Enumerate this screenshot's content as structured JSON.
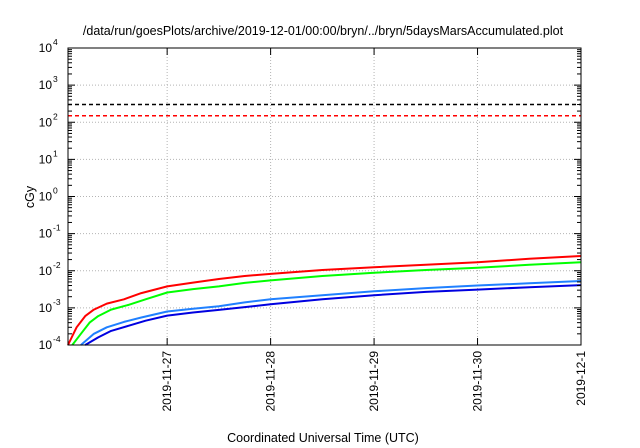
{
  "chart_data": {
    "type": "line",
    "title": "/data/run/goesPlots/archive/2019-12-01/00:00/bryn/../bryn/5daysMarsAccumulated.plot",
    "xlabel": "Coordinated Universal Time (UTC)",
    "ylabel": "cGy",
    "y_scale": "log",
    "grid": true,
    "ylim": [
      0.0001,
      10000
    ],
    "xlim": [
      "2019-11-26T01:00",
      "2019-12-01T00:00"
    ],
    "y_ticks": [
      {
        "value": 0.0001,
        "base": "10",
        "exp": "-4"
      },
      {
        "value": 0.001,
        "base": "10",
        "exp": "-3"
      },
      {
        "value": 0.01,
        "base": "10",
        "exp": "-2"
      },
      {
        "value": 0.1,
        "base": "10",
        "exp": "-1"
      },
      {
        "value": 1,
        "base": "10",
        "exp": "0"
      },
      {
        "value": 10,
        "base": "10",
        "exp": "1"
      },
      {
        "value": 100,
        "base": "10",
        "exp": "2"
      },
      {
        "value": 1000,
        "base": "10",
        "exp": "3"
      },
      {
        "value": 10000,
        "base": "10",
        "exp": "4"
      }
    ],
    "x_ticks": [
      {
        "value": "2019-11-27T00:00",
        "label": "2019-11-27"
      },
      {
        "value": "2019-11-28T00:00",
        "label": "2019-11-28"
      },
      {
        "value": "2019-11-29T00:00",
        "label": "2019-11-29"
      },
      {
        "value": "2019-11-30T00:00",
        "label": "2019-11-30"
      },
      {
        "value": "2019-12-01T00:00",
        "label": "2019-12-1"
      }
    ],
    "reference_lines": [
      {
        "y": 300,
        "color": "#000000",
        "style": "dashed"
      },
      {
        "y": 150,
        "color": "#ff0000",
        "style": "dashed"
      }
    ],
    "series": [
      {
        "color": "#ff0000",
        "x": [
          "2019-11-26T01:00",
          "2019-11-26T03:00",
          "2019-11-26T05:00",
          "2019-11-26T07:00",
          "2019-11-26T10:00",
          "2019-11-26T14:00",
          "2019-11-26T18:00",
          "2019-11-27T00:00",
          "2019-11-27T06:00",
          "2019-11-27T12:00",
          "2019-11-27T18:00",
          "2019-11-28T00:00",
          "2019-11-28T12:00",
          "2019-11-29T00:00",
          "2019-11-29T12:00",
          "2019-11-30T00:00",
          "2019-11-30T12:00",
          "2019-12-01T00:00"
        ],
        "values": [
          0.0001,
          0.0003,
          0.0006,
          0.0009,
          0.0013,
          0.0017,
          0.0025,
          0.0038,
          0.0048,
          0.006,
          0.0072,
          0.0082,
          0.0105,
          0.0125,
          0.0145,
          0.017,
          0.021,
          0.025
        ]
      },
      {
        "color": "#00ff00",
        "x": [
          "2019-11-26T02:00",
          "2019-11-26T04:00",
          "2019-11-26T06:00",
          "2019-11-26T08:00",
          "2019-11-26T11:00",
          "2019-11-26T15:00",
          "2019-11-26T19:00",
          "2019-11-27T00:00",
          "2019-11-27T06:00",
          "2019-11-27T12:00",
          "2019-11-27T18:00",
          "2019-11-28T00:00",
          "2019-11-28T12:00",
          "2019-11-29T00:00",
          "2019-11-29T12:00",
          "2019-11-30T00:00",
          "2019-11-30T12:00",
          "2019-12-01T00:00"
        ],
        "values": [
          0.0001,
          0.0002,
          0.0004,
          0.0006,
          0.0009,
          0.0012,
          0.0017,
          0.0026,
          0.0032,
          0.0038,
          0.0047,
          0.0055,
          0.0072,
          0.0088,
          0.0105,
          0.012,
          0.0145,
          0.017
        ]
      },
      {
        "color": "#2080ff",
        "x": [
          "2019-11-26T04:00",
          "2019-11-26T07:00",
          "2019-11-26T10:00",
          "2019-11-26T14:00",
          "2019-11-26T18:00",
          "2019-11-27T00:00",
          "2019-11-27T06:00",
          "2019-11-27T12:00",
          "2019-11-27T18:00",
          "2019-11-28T00:00",
          "2019-11-28T12:00",
          "2019-11-29T00:00",
          "2019-11-29T12:00",
          "2019-11-30T00:00",
          "2019-11-30T12:00",
          "2019-12-01T00:00"
        ],
        "values": [
          0.0001,
          0.0002,
          0.0003,
          0.00042,
          0.00055,
          0.0008,
          0.00095,
          0.0011,
          0.0014,
          0.0017,
          0.0022,
          0.0028,
          0.0034,
          0.004,
          0.0046,
          0.0053
        ]
      },
      {
        "color": "#0000e0",
        "x": [
          "2019-11-26T05:00",
          "2019-11-26T08:00",
          "2019-11-26T11:00",
          "2019-11-26T15:00",
          "2019-11-26T19:00",
          "2019-11-27T00:00",
          "2019-11-27T06:00",
          "2019-11-27T12:00",
          "2019-11-27T18:00",
          "2019-11-28T00:00",
          "2019-11-28T12:00",
          "2019-11-29T00:00",
          "2019-11-29T12:00",
          "2019-11-30T00:00",
          "2019-11-30T12:00",
          "2019-12-01T00:00"
        ],
        "values": [
          0.0001,
          0.00016,
          0.00024,
          0.00033,
          0.00045,
          0.00062,
          0.00075,
          0.00088,
          0.00105,
          0.00125,
          0.0017,
          0.0022,
          0.0027,
          0.0031,
          0.0036,
          0.0041
        ]
      }
    ]
  }
}
